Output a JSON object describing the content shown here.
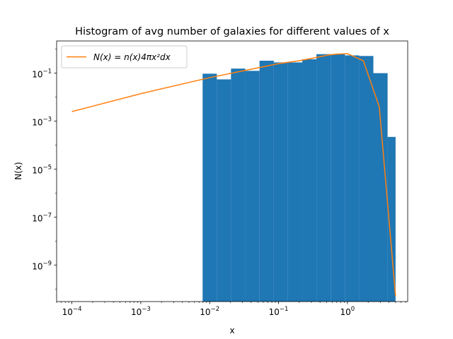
{
  "chart_data": {
    "type": "bar",
    "title": "Histogram of avg number of galaxies for different values of x",
    "xlabel": "x",
    "ylabel": "N(x)",
    "xscale": "log",
    "yscale": "log",
    "xlim": [
      6e-05,
      7.5
    ],
    "ylim": [
      3e-11,
      2.2
    ],
    "x_ticks": [
      {
        "value": 0.0001,
        "base": "10",
        "exp": "−4"
      },
      {
        "value": 0.001,
        "base": "10",
        "exp": "−3"
      },
      {
        "value": 0.01,
        "base": "10",
        "exp": "−2"
      },
      {
        "value": 0.1,
        "base": "10",
        "exp": "−1"
      },
      {
        "value": 1,
        "base": "10",
        "exp": "0"
      }
    ],
    "y_ticks": [
      {
        "value": 1e-09,
        "base": "10",
        "exp": "−9"
      },
      {
        "value": 1e-07,
        "base": "10",
        "exp": "−7"
      },
      {
        "value": 1e-05,
        "base": "10",
        "exp": "−5"
      },
      {
        "value": 0.001,
        "base": "10",
        "exp": "−3"
      },
      {
        "value": 0.1,
        "base": "10",
        "exp": "−1"
      }
    ],
    "legend": {
      "position": "top-left",
      "label": "N(x) = n(x)4πx²dx"
    },
    "histogram": {
      "color": "#1f77b4",
      "bins": [
        {
          "x0": 0.0079,
          "x1": 0.0127,
          "value": 0.095
        },
        {
          "x0": 0.0127,
          "x1": 0.0204,
          "value": 0.055
        },
        {
          "x0": 0.0204,
          "x1": 0.0329,
          "value": 0.155
        },
        {
          "x0": 0.0329,
          "x1": 0.053,
          "value": 0.125
        },
        {
          "x0": 0.053,
          "x1": 0.0853,
          "value": 0.33
        },
        {
          "x0": 0.0853,
          "x1": 0.137,
          "value": 0.28
        },
        {
          "x0": 0.137,
          "x1": 0.221,
          "value": 0.28
        },
        {
          "x0": 0.221,
          "x1": 0.355,
          "value": 0.38
        },
        {
          "x0": 0.355,
          "x1": 0.572,
          "value": 0.62
        },
        {
          "x0": 0.572,
          "x1": 0.92,
          "value": 0.62
        },
        {
          "x0": 0.92,
          "x1": 1.48,
          "value": 0.55
        },
        {
          "x0": 1.48,
          "x1": 2.38,
          "value": 0.52
        },
        {
          "x0": 2.38,
          "x1": 3.83,
          "value": 0.1
        },
        {
          "x0": 3.83,
          "x1": 5.0,
          "value": 0.00022
        }
      ]
    },
    "series": [
      {
        "name": "N(x) = n(x)4πx²dx",
        "color": "#ff7f0e",
        "x": [
          0.0001,
          0.001,
          0.01,
          0.1,
          0.2,
          0.35,
          0.55,
          0.7,
          1.0,
          1.7,
          2.9,
          5.0
        ],
        "y": [
          0.0025,
          0.014,
          0.065,
          0.25,
          0.33,
          0.45,
          0.58,
          0.62,
          0.65,
          0.33,
          0.004,
          5e-11
        ]
      }
    ]
  }
}
